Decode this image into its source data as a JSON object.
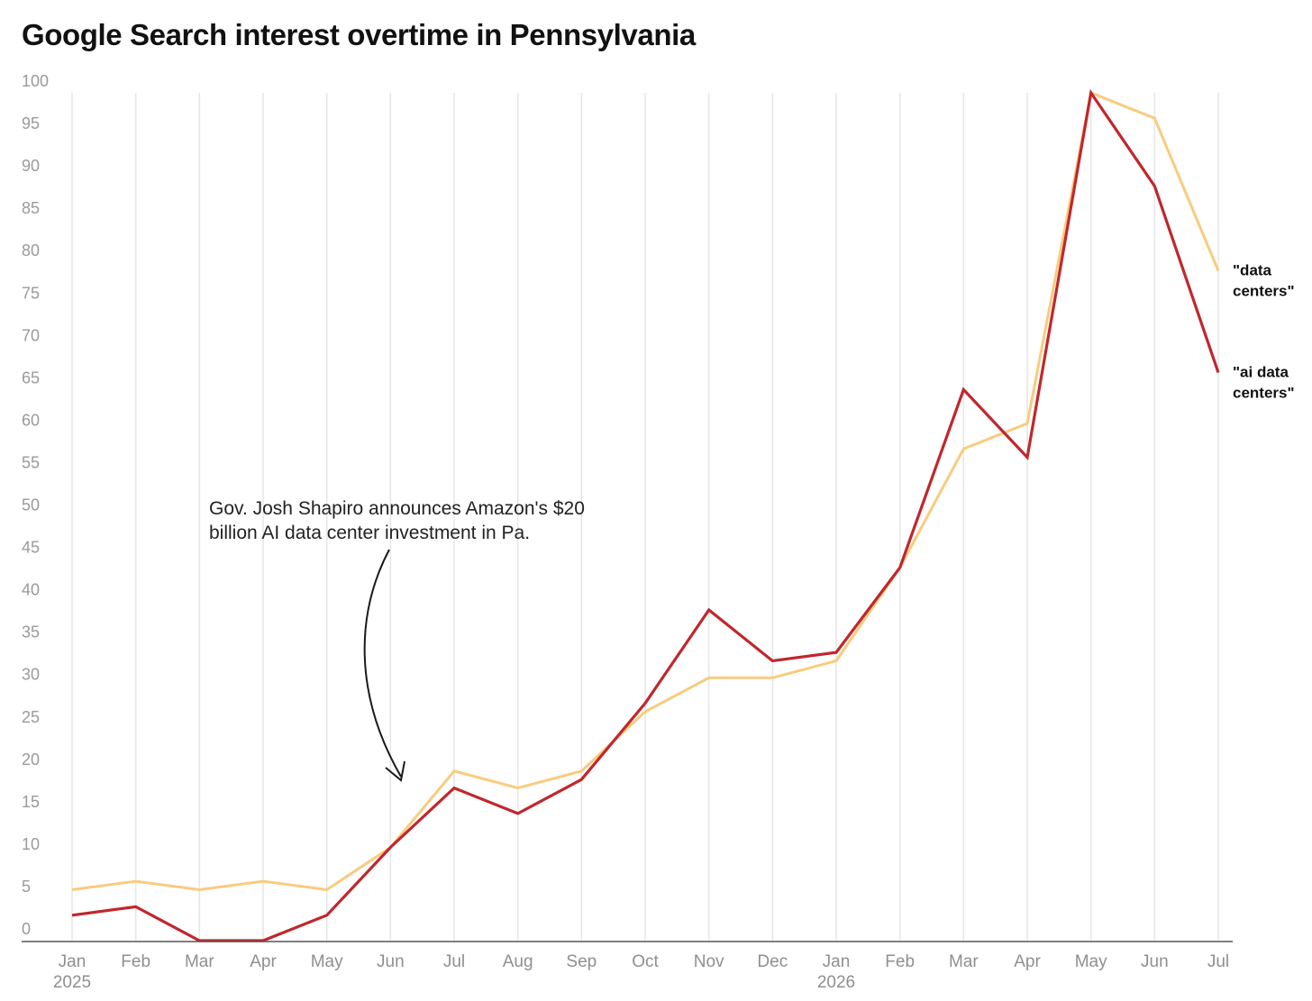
{
  "chart_data": {
    "type": "line",
    "title": "Google Search interest overtime in Pennsylvania",
    "categories": [
      "Jan",
      "Feb",
      "Mar",
      "Apr",
      "May",
      "Jun",
      "Jul",
      "Aug",
      "Sep",
      "Oct",
      "Nov",
      "Dec",
      "Jan",
      "Feb",
      "Mar",
      "Apr",
      "May",
      "Jun",
      "Jul"
    ],
    "year_labels": [
      "2025",
      "",
      "",
      "",
      "",
      "",
      "",
      "",
      "",
      "",
      "",
      "",
      "2026",
      "",
      "",
      "",
      "",
      "",
      ""
    ],
    "y_ticks": [
      "0",
      "5",
      "10",
      "15",
      "20",
      "25",
      "30",
      "35",
      "40",
      "45",
      "50",
      "55",
      "60",
      "65",
      "70",
      "75",
      "80",
      "85",
      "90",
      "95",
      "100"
    ],
    "ylim": [
      0,
      100
    ],
    "grid": "vertical",
    "legend": "right-end labels",
    "series": [
      {
        "name": "\"data centers\"",
        "label_lines": [
          "\"data",
          "centers\""
        ],
        "color": "#f8cc7e",
        "values": [
          6,
          7,
          6,
          7,
          6,
          11,
          20,
          18,
          20,
          27,
          31,
          31,
          33,
          44,
          58,
          61,
          100,
          97,
          79
        ]
      },
      {
        "name": "\"ai data centers\"",
        "label_lines": [
          "\"ai data",
          "centers\""
        ],
        "color": "#c0272d",
        "values": [
          3,
          4,
          0,
          0,
          3,
          11,
          18,
          15,
          19,
          28,
          39,
          33,
          34,
          44,
          65,
          57,
          100,
          89,
          67
        ]
      }
    ],
    "annotation": {
      "lines": [
        "Gov. Josh Shapiro announces Amazon's $20",
        "billion AI data center investment in Pa."
      ],
      "target_category_index": 5
    }
  }
}
